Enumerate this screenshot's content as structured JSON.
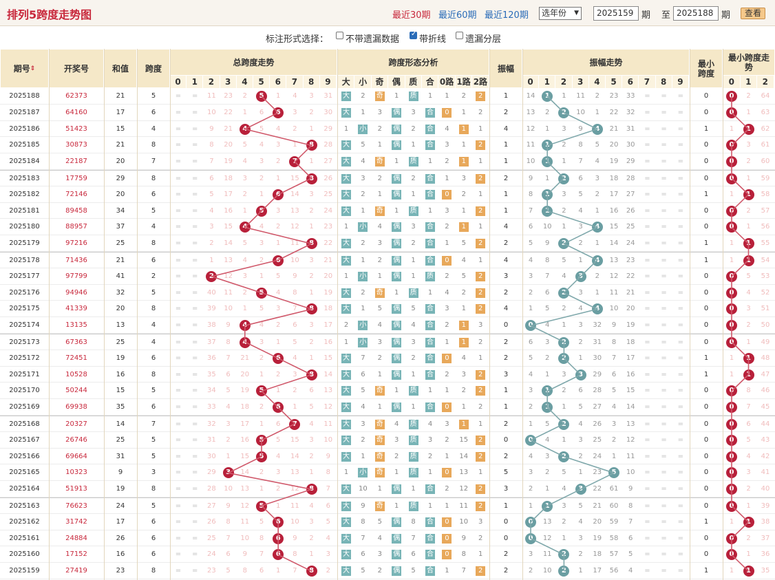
{
  "title": "排列5跨度走势图",
  "nav": {
    "recent30": "最近30期",
    "recent60": "最近60期",
    "recent120": "最近120期",
    "year_select": "选年份",
    "from_issue": "2025159",
    "period1": "期",
    "to": "至",
    "to_issue": "2025188",
    "period2": "期",
    "query": "查看"
  },
  "options": {
    "label": "标注形式选择：",
    "opt1": "不带遗漏数据",
    "opt2": "带折线",
    "opt3": "遗漏分层"
  },
  "headers": {
    "issue": "期号",
    "draw": "开奖号",
    "sum": "和值",
    "span": "跨度",
    "total": "总跨度走势",
    "shape": "跨度形态分析",
    "amp": "振幅",
    "amptrend": "振幅走势",
    "minspan": "最小跨度",
    "mintrend": "最小跨度走势"
  },
  "digits": [
    "0",
    "1",
    "2",
    "3",
    "4",
    "5",
    "6",
    "7",
    "8",
    "9"
  ],
  "shape_cols": [
    "大",
    "小",
    "奇",
    "偶",
    "质",
    "合",
    "0路",
    "1路",
    "2路"
  ],
  "min_cols": [
    "0",
    "1",
    "2"
  ],
  "colors": {
    "red": "#b8203a",
    "teal": "#6a9ea2",
    "accent": "#c8283c"
  },
  "rows": [
    {
      "i": "2025188",
      "n": "62373",
      "s": 21,
      "k": 5,
      "a": 1,
      "m": 0,
      "tm": [
        "=",
        "=",
        "11",
        "23",
        "2",
        "5",
        "1",
        "4",
        "3",
        "31"
      ],
      "sh": [
        "大",
        "2",
        "奇",
        "1",
        "质",
        "1",
        "1",
        "2",
        "2"
      ],
      "am": [
        "14",
        "1",
        "1",
        "11",
        "2",
        "23",
        "33",
        "=",
        "=",
        "="
      ],
      "mm": [
        "0",
        "2",
        "64"
      ]
    },
    {
      "i": "2025187",
      "n": "64160",
      "s": 17,
      "k": 6,
      "a": 2,
      "m": 0,
      "tm": [
        "=",
        "=",
        "10",
        "22",
        "1",
        "6",
        "6",
        "3",
        "2",
        "30"
      ],
      "sh": [
        "大",
        "1",
        "3",
        "偶",
        "3",
        "合",
        "0",
        "1",
        "2"
      ],
      "am": [
        "13",
        "2",
        "2",
        "10",
        "1",
        "22",
        "32",
        "=",
        "=",
        "="
      ],
      "mm": [
        "0",
        "1",
        "63"
      ]
    },
    {
      "i": "2025186",
      "n": "51423",
      "s": 15,
      "k": 4,
      "a": 4,
      "m": 1,
      "tm": [
        "=",
        "=",
        "9",
        "21",
        "4",
        "5",
        "4",
        "2",
        "1",
        "29"
      ],
      "sh": [
        "1",
        "小",
        "2",
        "偶",
        "2",
        "合",
        "4",
        "1",
        "1"
      ],
      "am": [
        "12",
        "1",
        "3",
        "9",
        "4",
        "21",
        "31",
        "=",
        "=",
        "="
      ],
      "mm": [
        "1",
        "1",
        "62"
      ]
    },
    {
      "i": "2025185",
      "n": "30873",
      "s": 21,
      "k": 8,
      "a": 1,
      "m": 0,
      "tm": [
        "=",
        "=",
        "8",
        "20",
        "5",
        "4",
        "3",
        "1",
        "8",
        "28"
      ],
      "sh": [
        "大",
        "5",
        "1",
        "偶",
        "1",
        "合",
        "3",
        "1",
        "2"
      ],
      "am": [
        "11",
        "1",
        "2",
        "8",
        "5",
        "20",
        "30",
        "=",
        "=",
        "="
      ],
      "mm": [
        "0",
        "3",
        "61"
      ]
    },
    {
      "i": "2025184",
      "n": "22187",
      "s": 20,
      "k": 7,
      "a": 1,
      "m": 0,
      "tm": [
        "=",
        "=",
        "7",
        "19",
        "4",
        "3",
        "2",
        "7",
        "1",
        "27"
      ],
      "sh": [
        "大",
        "4",
        "奇",
        "1",
        "质",
        "1",
        "2",
        "1",
        "1"
      ],
      "am": [
        "10",
        "1",
        "1",
        "7",
        "4",
        "19",
        "29",
        "=",
        "=",
        "="
      ],
      "mm": [
        "0",
        "2",
        "60"
      ]
    },
    {
      "i": "2025183",
      "n": "17759",
      "s": 29,
      "k": 8,
      "a": 2,
      "m": 0,
      "tm": [
        "=",
        "=",
        "6",
        "18",
        "3",
        "2",
        "1",
        "15",
        "8",
        "26"
      ],
      "sh": [
        "大",
        "3",
        "2",
        "偶",
        "2",
        "合",
        "1",
        "3",
        "2"
      ],
      "am": [
        "9",
        "1",
        "2",
        "6",
        "3",
        "18",
        "28",
        "=",
        "=",
        "="
      ],
      "mm": [
        "0",
        "1",
        "59"
      ]
    },
    {
      "i": "2025182",
      "n": "72146",
      "s": 20,
      "k": 6,
      "a": 1,
      "m": 1,
      "tm": [
        "=",
        "=",
        "5",
        "17",
        "2",
        "1",
        "6",
        "14",
        "3",
        "25"
      ],
      "sh": [
        "大",
        "2",
        "1",
        "偶",
        "1",
        "合",
        "0",
        "2",
        "1"
      ],
      "am": [
        "8",
        "1",
        "3",
        "5",
        "2",
        "17",
        "27",
        "=",
        "=",
        "="
      ],
      "mm": [
        "1",
        "1",
        "58"
      ]
    },
    {
      "i": "2025181",
      "n": "89458",
      "s": 34,
      "k": 5,
      "a": 1,
      "m": 0,
      "tm": [
        "=",
        "=",
        "4",
        "16",
        "1",
        "5",
        "3",
        "13",
        "2",
        "24"
      ],
      "sh": [
        "大",
        "1",
        "奇",
        "1",
        "质",
        "1",
        "3",
        "1",
        "2"
      ],
      "am": [
        "7",
        "1",
        "2",
        "4",
        "1",
        "16",
        "26",
        "=",
        "=",
        "="
      ],
      "mm": [
        "0",
        "2",
        "57"
      ]
    },
    {
      "i": "2025180",
      "n": "88957",
      "s": 37,
      "k": 4,
      "a": 4,
      "m": 0,
      "tm": [
        "=",
        "=",
        "3",
        "15",
        "4",
        "4",
        "2",
        "12",
        "1",
        "23"
      ],
      "sh": [
        "1",
        "小",
        "4",
        "偶",
        "3",
        "合",
        "2",
        "1",
        "1"
      ],
      "am": [
        "6",
        "10",
        "1",
        "3",
        "4",
        "15",
        "25",
        "=",
        "=",
        "="
      ],
      "mm": [
        "0",
        "1",
        "56"
      ]
    },
    {
      "i": "2025179",
      "n": "97216",
      "s": 25,
      "k": 8,
      "a": 2,
      "m": 1,
      "tm": [
        "=",
        "=",
        "2",
        "14",
        "5",
        "3",
        "1",
        "11",
        "8",
        "22"
      ],
      "sh": [
        "大",
        "2",
        "3",
        "偶",
        "2",
        "合",
        "1",
        "5",
        "2"
      ],
      "am": [
        "5",
        "9",
        "2",
        "2",
        "1",
        "14",
        "24",
        "=",
        "=",
        "="
      ],
      "mm": [
        "1",
        "1",
        "55"
      ]
    },
    {
      "i": "2025178",
      "n": "71436",
      "s": 21,
      "k": 6,
      "a": 4,
      "m": 1,
      "tm": [
        "=",
        "=",
        "1",
        "13",
        "4",
        "2",
        "6",
        "10",
        "3",
        "21"
      ],
      "sh": [
        "大",
        "1",
        "2",
        "偶",
        "1",
        "合",
        "0",
        "4",
        "1"
      ],
      "am": [
        "4",
        "8",
        "5",
        "1",
        "4",
        "13",
        "23",
        "=",
        "=",
        "="
      ],
      "mm": [
        "1",
        "1",
        "54"
      ]
    },
    {
      "i": "2025177",
      "n": "97799",
      "s": 41,
      "k": 2,
      "a": 3,
      "m": 0,
      "tm": [
        "=",
        "=",
        "2",
        "12",
        "3",
        "1",
        "5",
        "9",
        "2",
        "20"
      ],
      "sh": [
        "1",
        "小",
        "1",
        "偶",
        "1",
        "质",
        "2",
        "5",
        "3"
      ],
      "am": [
        "3",
        "7",
        "4",
        "3",
        "2",
        "12",
        "22",
        "=",
        "=",
        "="
      ],
      "mm": [
        "0",
        "5",
        "53"
      ]
    },
    {
      "i": "2025176",
      "n": "94946",
      "s": 32,
      "k": 5,
      "a": 2,
      "m": 0,
      "tm": [
        "=",
        "=",
        "40",
        "11",
        "2",
        "5",
        "4",
        "8",
        "1",
        "19"
      ],
      "sh": [
        "大",
        "2",
        "奇",
        "1",
        "质",
        "1",
        "4",
        "2",
        "2"
      ],
      "am": [
        "2",
        "6",
        "3",
        "3",
        "1",
        "11",
        "21",
        "=",
        "=",
        "="
      ],
      "mm": [
        "0",
        "4",
        "52"
      ]
    },
    {
      "i": "2025175",
      "n": "41339",
      "s": 20,
      "k": 8,
      "a": 4,
      "m": 0,
      "tm": [
        "=",
        "=",
        "39",
        "10",
        "1",
        "5",
        "3",
        "7",
        "8",
        "18"
      ],
      "sh": [
        "大",
        "1",
        "5",
        "偶",
        "5",
        "合",
        "3",
        "1",
        "2"
      ],
      "am": [
        "1",
        "5",
        "2",
        "4",
        "4",
        "10",
        "20",
        "=",
        "=",
        "="
      ],
      "mm": [
        "0",
        "3",
        "51"
      ]
    },
    {
      "i": "2025174",
      "n": "13135",
      "s": 13,
      "k": 4,
      "a": 0,
      "m": 0,
      "tm": [
        "=",
        "=",
        "38",
        "9",
        "4",
        "4",
        "2",
        "6",
        "3",
        "17"
      ],
      "sh": [
        "2",
        "小",
        "4",
        "偶",
        "4",
        "合",
        "2",
        "1",
        "3"
      ],
      "am": [
        "0",
        "4",
        "1",
        "3",
        "32",
        "9",
        "19",
        "=",
        "=",
        "="
      ],
      "mm": [
        "0",
        "2",
        "50"
      ]
    },
    {
      "i": "2025173",
      "n": "67363",
      "s": 25,
      "k": 4,
      "a": 2,
      "m": 0,
      "tm": [
        "=",
        "=",
        "37",
        "8",
        "4",
        "3",
        "1",
        "5",
        "2",
        "16"
      ],
      "sh": [
        "1",
        "小",
        "3",
        "偶",
        "3",
        "合",
        "1",
        "1",
        "2"
      ],
      "am": [
        "6",
        "3",
        "2",
        "2",
        "31",
        "8",
        "18",
        "=",
        "=",
        "="
      ],
      "mm": [
        "0",
        "1",
        "49"
      ]
    },
    {
      "i": "2025172",
      "n": "72451",
      "s": 19,
      "k": 6,
      "a": 2,
      "m": 1,
      "tm": [
        "=",
        "=",
        "36",
        "7",
        "21",
        "2",
        "6",
        "4",
        "1",
        "15"
      ],
      "sh": [
        "大",
        "7",
        "2",
        "偶",
        "2",
        "合",
        "0",
        "4",
        "1"
      ],
      "am": [
        "5",
        "2",
        "2",
        "1",
        "30",
        "7",
        "17",
        "=",
        "=",
        "="
      ],
      "mm": [
        "1",
        "2",
        "48"
      ]
    },
    {
      "i": "2025171",
      "n": "10528",
      "s": 16,
      "k": 8,
      "a": 3,
      "m": 1,
      "tm": [
        "=",
        "=",
        "35",
        "6",
        "20",
        "1",
        "2",
        "3",
        "8",
        "14"
      ],
      "sh": [
        "大",
        "6",
        "1",
        "偶",
        "1",
        "合",
        "2",
        "3",
        "2"
      ],
      "am": [
        "4",
        "1",
        "3",
        "3",
        "29",
        "6",
        "16",
        "=",
        "=",
        "="
      ],
      "mm": [
        "1",
        "1",
        "47"
      ]
    },
    {
      "i": "2025170",
      "n": "50244",
      "s": 15,
      "k": 5,
      "a": 1,
      "m": 0,
      "tm": [
        "=",
        "=",
        "34",
        "5",
        "19",
        "5",
        "1",
        "2",
        "6",
        "13"
      ],
      "sh": [
        "大",
        "5",
        "奇",
        "1",
        "质",
        "1",
        "1",
        "2",
        "2"
      ],
      "am": [
        "3",
        "1",
        "2",
        "6",
        "28",
        "5",
        "15",
        "=",
        "=",
        "="
      ],
      "mm": [
        "0",
        "8",
        "46"
      ]
    },
    {
      "i": "2025169",
      "n": "69938",
      "s": 35,
      "k": 6,
      "a": 1,
      "m": 0,
      "tm": [
        "=",
        "=",
        "33",
        "4",
        "18",
        "2",
        "6",
        "1",
        "5",
        "12"
      ],
      "sh": [
        "大",
        "4",
        "1",
        "偶",
        "1",
        "合",
        "0",
        "1",
        "2"
      ],
      "am": [
        "2",
        "1",
        "1",
        "5",
        "27",
        "4",
        "14",
        "=",
        "=",
        "="
      ],
      "mm": [
        "0",
        "7",
        "45"
      ]
    },
    {
      "i": "2025168",
      "n": "20327",
      "s": 14,
      "k": 7,
      "a": 2,
      "m": 0,
      "tm": [
        "=",
        "=",
        "32",
        "3",
        "17",
        "1",
        "6",
        "7",
        "4",
        "11"
      ],
      "sh": [
        "大",
        "3",
        "奇",
        "4",
        "质",
        "4",
        "3",
        "1",
        "1"
      ],
      "am": [
        "1",
        "5",
        "2",
        "4",
        "26",
        "3",
        "13",
        "=",
        "=",
        "="
      ],
      "mm": [
        "0",
        "6",
        "44"
      ]
    },
    {
      "i": "2025167",
      "n": "26746",
      "s": 25,
      "k": 5,
      "a": 0,
      "m": 0,
      "tm": [
        "=",
        "=",
        "31",
        "2",
        "16",
        "5",
        "5",
        "15",
        "3",
        "10"
      ],
      "sh": [
        "大",
        "2",
        "奇",
        "3",
        "质",
        "3",
        "2",
        "15",
        "2"
      ],
      "am": [
        "0",
        "4",
        "1",
        "3",
        "25",
        "2",
        "12",
        "=",
        "=",
        "="
      ],
      "mm": [
        "0",
        "5",
        "43"
      ]
    },
    {
      "i": "2025166",
      "n": "69664",
      "s": 31,
      "k": 5,
      "a": 2,
      "m": 0,
      "tm": [
        "=",
        "=",
        "30",
        "1",
        "15",
        "5",
        "4",
        "14",
        "2",
        "9"
      ],
      "sh": [
        "大",
        "1",
        "奇",
        "2",
        "质",
        "2",
        "1",
        "14",
        "2"
      ],
      "am": [
        "4",
        "3",
        "2",
        "2",
        "24",
        "1",
        "11",
        "=",
        "=",
        "="
      ],
      "mm": [
        "0",
        "4",
        "42"
      ]
    },
    {
      "i": "2025165",
      "n": "10323",
      "s": 9,
      "k": 3,
      "a": 5,
      "m": 0,
      "tm": [
        "=",
        "=",
        "29",
        "3",
        "14",
        "2",
        "3",
        "13",
        "1",
        "8"
      ],
      "sh": [
        "1",
        "小",
        "奇",
        "1",
        "质",
        "1",
        "0",
        "13",
        "1"
      ],
      "am": [
        "3",
        "2",
        "5",
        "1",
        "23",
        "5",
        "10",
        "=",
        "=",
        "="
      ],
      "mm": [
        "0",
        "3",
        "41"
      ]
    },
    {
      "i": "2025164",
      "n": "51913",
      "s": 19,
      "k": 8,
      "a": 3,
      "m": 0,
      "tm": [
        "=",
        "=",
        "28",
        "10",
        "13",
        "1",
        "2",
        "12",
        "8",
        "7"
      ],
      "sh": [
        "大",
        "10",
        "1",
        "偶",
        "1",
        "合",
        "2",
        "12",
        "2"
      ],
      "am": [
        "2",
        "1",
        "4",
        "3",
        "22",
        "61",
        "9",
        "=",
        "=",
        "="
      ],
      "mm": [
        "0",
        "2",
        "40"
      ]
    },
    {
      "i": "2025163",
      "n": "76623",
      "s": 24,
      "k": 5,
      "a": 1,
      "m": 0,
      "tm": [
        "=",
        "=",
        "27",
        "9",
        "12",
        "5",
        "1",
        "11",
        "4",
        "6"
      ],
      "sh": [
        "大",
        "9",
        "奇",
        "1",
        "质",
        "1",
        "1",
        "11",
        "2"
      ],
      "am": [
        "1",
        "1",
        "3",
        "5",
        "21",
        "60",
        "8",
        "=",
        "=",
        "="
      ],
      "mm": [
        "0",
        "1",
        "39"
      ]
    },
    {
      "i": "2025162",
      "n": "31742",
      "s": 17,
      "k": 6,
      "a": 0,
      "m": 1,
      "tm": [
        "=",
        "=",
        "26",
        "8",
        "11",
        "5",
        "6",
        "10",
        "3",
        "5"
      ],
      "sh": [
        "大",
        "8",
        "5",
        "偶",
        "8",
        "合",
        "0",
        "10",
        "3"
      ],
      "am": [
        "0",
        "13",
        "2",
        "4",
        "20",
        "59",
        "7",
        "=",
        "=",
        "="
      ],
      "mm": [
        "1",
        "1",
        "38"
      ]
    },
    {
      "i": "2025161",
      "n": "24884",
      "s": 26,
      "k": 6,
      "a": 0,
      "m": 0,
      "tm": [
        "=",
        "=",
        "25",
        "7",
        "10",
        "8",
        "6",
        "9",
        "2",
        "4"
      ],
      "sh": [
        "大",
        "7",
        "4",
        "偶",
        "7",
        "合",
        "0",
        "9",
        "2"
      ],
      "am": [
        "0",
        "12",
        "1",
        "3",
        "19",
        "58",
        "6",
        "=",
        "=",
        "="
      ],
      "mm": [
        "0",
        "2",
        "37"
      ]
    },
    {
      "i": "2025160",
      "n": "17152",
      "s": 16,
      "k": 6,
      "a": 2,
      "m": 0,
      "tm": [
        "=",
        "=",
        "24",
        "6",
        "9",
        "7",
        "6",
        "8",
        "1",
        "3"
      ],
      "sh": [
        "大",
        "6",
        "3",
        "偶",
        "6",
        "合",
        "0",
        "8",
        "1"
      ],
      "am": [
        "3",
        "11",
        "2",
        "2",
        "18",
        "57",
        "5",
        "=",
        "=",
        "="
      ],
      "mm": [
        "0",
        "1",
        "36"
      ]
    },
    {
      "i": "2025159",
      "n": "27419",
      "s": 23,
      "k": 8,
      "a": 2,
      "m": 1,
      "tm": [
        "=",
        "=",
        "23",
        "5",
        "8",
        "6",
        "1",
        "7",
        "8",
        "2"
      ],
      "sh": [
        "大",
        "5",
        "2",
        "偶",
        "5",
        "合",
        "1",
        "7",
        "2"
      ],
      "am": [
        "2",
        "10",
        "2",
        "1",
        "17",
        "56",
        "4",
        "=",
        "=",
        "="
      ],
      "mm": [
        "1",
        "1",
        "35"
      ]
    }
  ]
}
